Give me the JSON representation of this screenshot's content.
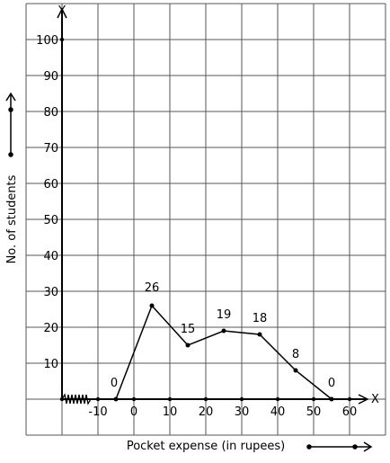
{
  "chart_data": {
    "type": "line",
    "title": "",
    "xlabel": "Pocket expense (in rupees)",
    "ylabel": "No. of students",
    "x_axis_letter": "X",
    "y_axis_letter": "Y",
    "xlim": [
      -15,
      65
    ],
    "ylim": [
      0,
      110
    ],
    "grid": true,
    "x_ticks": [
      "-10",
      "0",
      "10",
      "20",
      "30",
      "40",
      "50",
      "60"
    ],
    "x_tick_values": [
      -10,
      0,
      10,
      20,
      30,
      40,
      50,
      60
    ],
    "y_ticks": [
      "10",
      "20",
      "30",
      "40",
      "50",
      "60",
      "70",
      "80",
      "90",
      "100"
    ],
    "y_tick_values": [
      10,
      20,
      30,
      40,
      50,
      60,
      70,
      80,
      90,
      100
    ],
    "series": [
      {
        "x": [
          -5,
          5,
          15,
          25,
          35,
          45,
          55
        ],
        "y": [
          0,
          26,
          15,
          19,
          18,
          8,
          0
        ],
        "labels": [
          "0",
          "26",
          "15",
          "19",
          "18",
          "8",
          "0"
        ]
      }
    ],
    "axis_break": "zigzag on x-axis between origin and -10"
  }
}
